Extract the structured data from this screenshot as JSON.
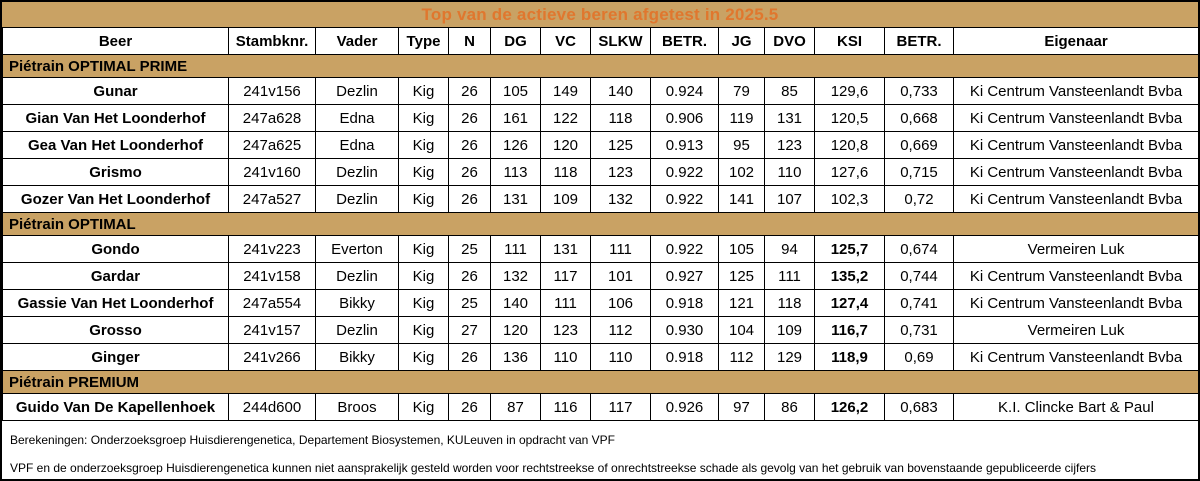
{
  "title": "Top van de actieve beren afgetest in 2025.5",
  "colors": {
    "band_bg": "#c9a264",
    "title_text": "#e0772e",
    "border": "#000000",
    "row_bg": "#ffffff"
  },
  "table": {
    "headers": [
      "Beer",
      "Stambknr.",
      "Vader",
      "Type",
      "N",
      "DG",
      "VC",
      "SLKW",
      "BETR.",
      "JG",
      "DVO",
      "KSI",
      "BETR.",
      "Eigenaar"
    ],
    "sections": [
      {
        "name": "Piétrain OPTIMAL PRIME",
        "rows": [
          {
            "cells": [
              "Gunar",
              "241v156",
              "Dezlin",
              "Kig",
              "26",
              "105",
              "149",
              "140",
              "0.924",
              "79",
              "85",
              "129,6",
              "0,733",
              "Ki Centrum Vansteenlandt Bvba"
            ],
            "ksi_bold": false
          },
          {
            "cells": [
              "Gian Van Het Loonderhof",
              "247a628",
              "Edna",
              "Kig",
              "26",
              "161",
              "122",
              "118",
              "0.906",
              "119",
              "131",
              "120,5",
              "0,668",
              "Ki Centrum Vansteenlandt Bvba"
            ],
            "ksi_bold": false
          },
          {
            "cells": [
              "Gea Van Het Loonderhof",
              "247a625",
              "Edna",
              "Kig",
              "26",
              "126",
              "120",
              "125",
              "0.913",
              "95",
              "123",
              "120,8",
              "0,669",
              "Ki Centrum Vansteenlandt Bvba"
            ],
            "ksi_bold": false
          },
          {
            "cells": [
              "Grismo",
              "241v160",
              "Dezlin",
              "Kig",
              "26",
              "113",
              "118",
              "123",
              "0.922",
              "102",
              "110",
              "127,6",
              "0,715",
              "Ki Centrum Vansteenlandt Bvba"
            ],
            "ksi_bold": false
          },
          {
            "cells": [
              "Gozer Van Het Loonderhof",
              "247a527",
              "Dezlin",
              "Kig",
              "26",
              "131",
              "109",
              "132",
              "0.922",
              "141",
              "107",
              "102,3",
              "0,72",
              "Ki Centrum Vansteenlandt Bvba"
            ],
            "ksi_bold": false
          }
        ]
      },
      {
        "name": "Piétrain OPTIMAL",
        "rows": [
          {
            "cells": [
              "Gondo",
              "241v223",
              "Everton",
              "Kig",
              "25",
              "111",
              "131",
              "111",
              "0.922",
              "105",
              "94",
              "125,7",
              "0,674",
              "Vermeiren Luk"
            ],
            "ksi_bold": true
          },
          {
            "cells": [
              "Gardar",
              "241v158",
              "Dezlin",
              "Kig",
              "26",
              "132",
              "117",
              "101",
              "0.927",
              "125",
              "111",
              "135,2",
              "0,744",
              "Ki Centrum Vansteenlandt Bvba"
            ],
            "ksi_bold": true
          },
          {
            "cells": [
              "Gassie Van Het Loonderhof",
              "247a554",
              "Bikky",
              "Kig",
              "25",
              "140",
              "111",
              "106",
              "0.918",
              "121",
              "118",
              "127,4",
              "0,741",
              "Ki Centrum Vansteenlandt Bvba"
            ],
            "ksi_bold": true
          },
          {
            "cells": [
              "Grosso",
              "241v157",
              "Dezlin",
              "Kig",
              "27",
              "120",
              "123",
              "112",
              "0.930",
              "104",
              "109",
              "116,7",
              "0,731",
              "Vermeiren Luk"
            ],
            "ksi_bold": true
          },
          {
            "cells": [
              "Ginger",
              "241v266",
              "Bikky",
              "Kig",
              "26",
              "136",
              "110",
              "110",
              "0.918",
              "112",
              "129",
              "118,9",
              "0,69",
              "Ki Centrum Vansteenlandt Bvba"
            ],
            "ksi_bold": true
          }
        ]
      },
      {
        "name": "Piétrain PREMIUM",
        "rows": [
          {
            "cells": [
              "Guido Van De Kapellenhoek",
              "244d600",
              "Broos",
              "Kig",
              "26",
              "87",
              "116",
              "117",
              "0.926",
              "97",
              "86",
              "126,2",
              "0,683",
              "K.I. Clincke Bart & Paul"
            ],
            "ksi_bold": true
          }
        ]
      }
    ]
  },
  "footer": {
    "line1": "Berekeningen: Onderzoeksgroep Huisdierengenetica, Departement Biosystemen, KULeuven in opdracht van VPF",
    "line2": "VPF en de onderzoeksgroep Huisdierengenetica kunnen niet aansprakelijk gesteld worden voor rechtstreekse of onrechtstreekse schade als gevolg van het gebruik van bovenstaande gepubliceerde cijfers"
  }
}
